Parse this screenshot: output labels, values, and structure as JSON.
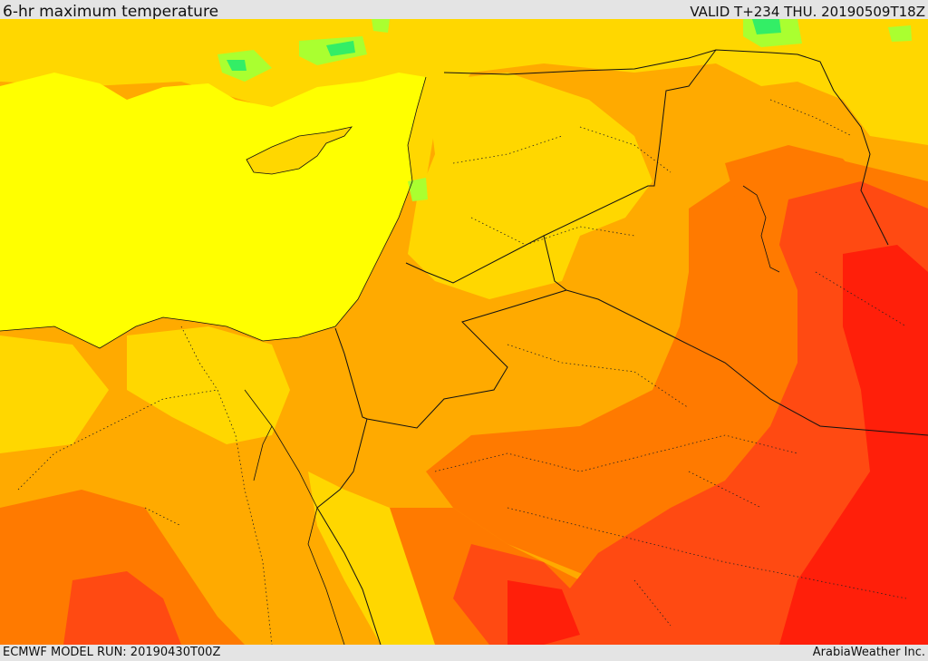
{
  "header": {
    "title": "6-hr maximum temperature",
    "valid": "VALID T+234 THU. 20190509T18Z"
  },
  "footer": {
    "model_run": "ECMWF MODEL RUN: 20190430T00Z",
    "credit": "ArabiaWeather Inc."
  },
  "palette": {
    "sea": "#ffff00",
    "mild": "#ffd700",
    "warm": "#ffaa00",
    "hot": "#ff7a00",
    "very_hot": "#ff4a12",
    "extreme": "#ff1f0a",
    "cool": "#aaff30",
    "cold": "#33ee66",
    "border": "#111111"
  }
}
